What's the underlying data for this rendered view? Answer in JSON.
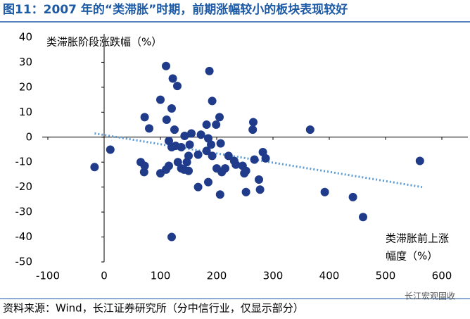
{
  "chart_data": {
    "type": "scatter",
    "title": "图11：2007 年的“类滞胀”时期，前期涨幅较小的板块表现较好",
    "y_label": "类滞胀阶段涨跌幅（%）",
    "x_label": [
      "类滞胀前上涨",
      "幅度（%）"
    ],
    "source": "资料来源：Wind，长江证券研究所（分中信行业，仅显示部分）",
    "watermark": "长江宏观固收",
    "color": "#1f3b8a",
    "x": [
      -17,
      11,
      110,
      122,
      130,
      187,
      192,
      100,
      120,
      72,
      80,
      111,
      125,
      205,
      265,
      264,
      366,
      182,
      199,
      155,
      143,
      172,
      115,
      127,
      152,
      185,
      190,
      207,
      120,
      137,
      150,
      167,
      182,
      192,
      221,
      231,
      267,
      282,
      287,
      65,
      72,
      71,
      100,
      110,
      115,
      131,
      137,
      147,
      142,
      150,
      200,
      209,
      215,
      234,
      246,
      252,
      249,
      275,
      185,
      167,
      206,
      252,
      277,
      392,
      442,
      460,
      561,
      120
    ],
    "values": [
      -12,
      -5,
      28.5,
      23.5,
      20.5,
      26.5,
      14.5,
      15,
      11.5,
      8,
      3.5,
      7,
      3,
      8,
      6,
      3,
      3,
      5,
      5,
      1.5,
      0.5,
      1,
      -1.5,
      -3.5,
      -3,
      -0.5,
      -3,
      -2.5,
      -4,
      -4,
      -7.5,
      -7,
      -5.5,
      -7.5,
      -7.5,
      -9.5,
      -9,
      -6,
      -8.5,
      -10,
      -11.5,
      -14,
      -14.5,
      -13,
      -11.5,
      -10,
      -12.5,
      -10,
      -13,
      -13.5,
      -12.5,
      -14,
      -12.5,
      -11,
      -11.5,
      -13.5,
      -14.5,
      -17,
      -18,
      -20,
      -23,
      -22,
      -21,
      -22,
      -24,
      -32,
      -9.5,
      -40
    ],
    "trendline": {
      "x": [
        -17,
        565
      ],
      "y": [
        1.5,
        -20
      ],
      "color": "#5b9bd5"
    },
    "xlim": [
      -100,
      600
    ],
    "xticks": [
      -100,
      0,
      100,
      200,
      300,
      400,
      500,
      600
    ],
    "ylim": [
      -50,
      40
    ],
    "yticks": [
      -50,
      -40,
      -30,
      -20,
      -10,
      0,
      10,
      20,
      30,
      40
    ]
  }
}
